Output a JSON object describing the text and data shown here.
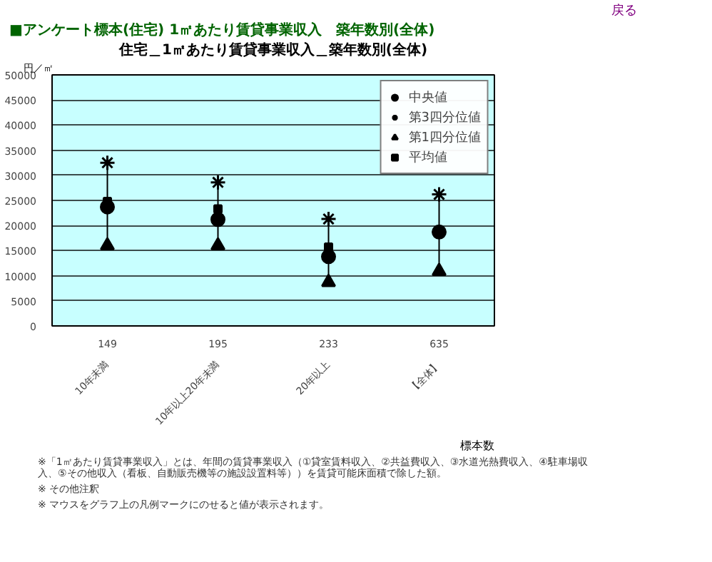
{
  "chart_data": {
    "type": "scatter",
    "title": "■アンケート標本(住宅) 1㎡あたり賃貸事業収入　築年数別(全体)",
    "subtitle": "住宅＿1㎡あたり賃貸事業収入＿築年数別(全体)",
    "ylabel": "円／㎡",
    "categories": [
      "10年未満",
      "10年以上20年未満",
      "20年以上",
      "【全体】"
    ],
    "series": [
      {
        "name": "中央値",
        "color": "#000000",
        "marker": "circle",
        "x": [
          "10年未満",
          "10年以上20年未満",
          "20年以上",
          "【全体】"
        ],
        "values": [
          23700,
          21200,
          13800,
          18700
        ]
      },
      {
        "name": "第3四分位値",
        "color": "#000000",
        "marker": "cross",
        "x": [
          "10年未満",
          "10年以上20年未満",
          "20年以上",
          "【全体】"
        ],
        "values": [
          32500,
          28600,
          21300,
          26200
        ]
      },
      {
        "name": "第1四分位値",
        "color": "#000000",
        "marker": "triangle",
        "x": [
          "10年未満",
          "10年以上20年未満",
          "20年以上",
          "【全体】"
        ],
        "values": [
          16000,
          16000,
          8700,
          10900
        ]
      },
      {
        "name": "平均値",
        "color": "#000000",
        "marker": "square",
        "x": [
          "10年未満",
          "10年以上20年未満",
          "20年以上",
          "【全体】"
        ],
        "values": [
          24800,
          23300,
          15700,
          null
        ]
      }
    ],
    "ylim": [
      0,
      50000
    ],
    "yticks": [
      0,
      5000,
      10000,
      15000,
      20000,
      25000,
      30000,
      35000,
      40000,
      45000,
      50000
    ],
    "grid": "y",
    "legend": "top right",
    "annotations": [
      "149",
      "195",
      "233",
      "635",
      "標本数",
      "戻る",
      "※「1㎡あたり賃貸事業収入」とは、年間の賃貸事業収入（①貸室賃料収入、②共益費収入、③水道光熱費収入、④駐車場収入、⑤その他収入（看板、自動販売機等の施設設置料等））を賃貸可能床面積で除した額。",
      "※ その他注釈",
      "※ マウスをグラフ上の凡例マークにのせると値が表示されます。"
    ]
  }
}
